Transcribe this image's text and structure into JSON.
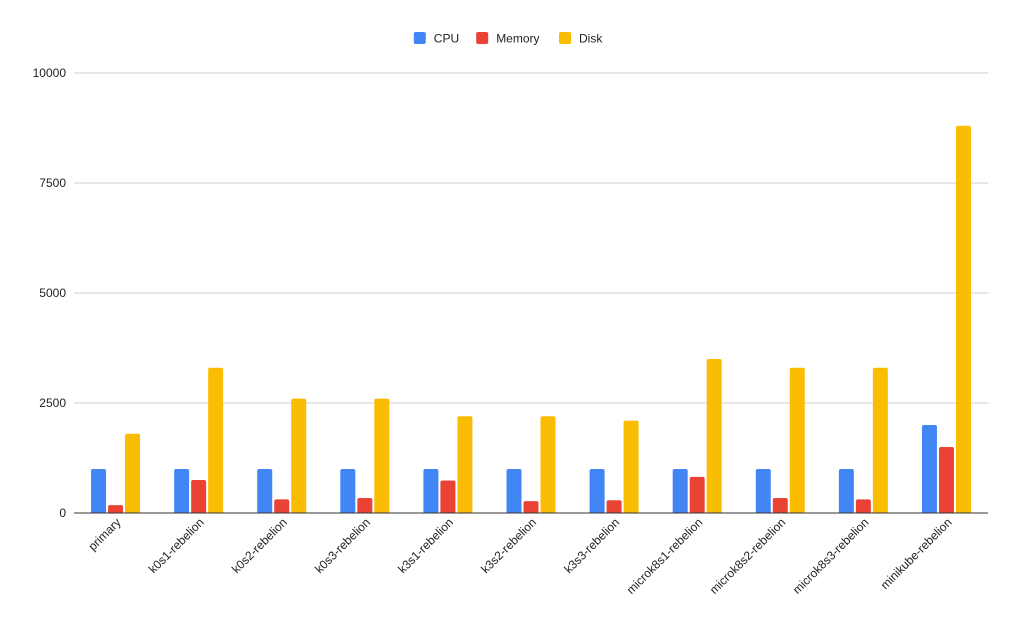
{
  "chart_data": {
    "type": "bar",
    "title": "",
    "xlabel": "",
    "ylabel": "",
    "ylim": [
      0,
      10000
    ],
    "yticks": [
      0,
      2500,
      5000,
      7500,
      10000
    ],
    "grid": true,
    "legend_position": "top-center",
    "categories": [
      "primary",
      "k0s1-rebelion",
      "k0s2-rebelion",
      "k0s3-rebelion",
      "k3s1-rebelion",
      "k3s2-rebelion",
      "k3s3-rebelion",
      "microk8s1-rebelion",
      "microk8s2-rebelion",
      "microk8s3-rebelion",
      "minikube-rebelion"
    ],
    "series": [
      {
        "name": "CPU",
        "color": "#4285f4",
        "values": [
          1000,
          1000,
          1000,
          1000,
          1000,
          1000,
          1000,
          1000,
          1000,
          1000,
          2000
        ]
      },
      {
        "name": "Memory",
        "color": "#ea4335",
        "values": [
          180,
          750,
          310,
          340,
          740,
          270,
          290,
          820,
          340,
          310,
          1500
        ]
      },
      {
        "name": "Disk",
        "color": "#fbbc04",
        "values": [
          1800,
          3300,
          2600,
          2600,
          2200,
          2200,
          2100,
          3500,
          3300,
          3300,
          8800
        ]
      }
    ]
  }
}
